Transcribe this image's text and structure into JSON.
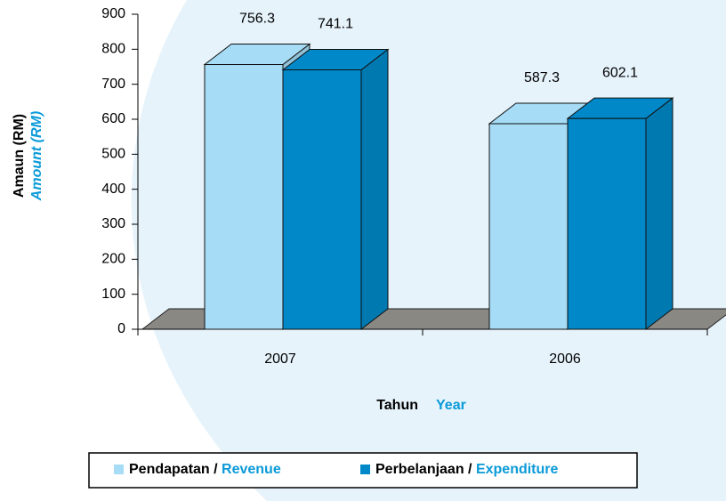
{
  "chart_data": {
    "type": "bar3d",
    "categories": [
      "2007",
      "2006"
    ],
    "series": [
      {
        "name": "Pendapatan / Revenue",
        "color": "#a6dcf5",
        "values": [
          756.3,
          587.3
        ]
      },
      {
        "name": "Perbelanjaan / Expenditure",
        "color": "#0088c8",
        "values": [
          741.1,
          602.1
        ]
      }
    ],
    "ylabel": [
      "Amaun (RM)",
      "Amount (RM)"
    ],
    "xlabel": [
      "Tahun",
      "Year"
    ],
    "ylim": [
      0,
      900
    ],
    "yticks": [
      0,
      100,
      200,
      300,
      400,
      500,
      600,
      700,
      800,
      900
    ],
    "legend": "bottom"
  }
}
